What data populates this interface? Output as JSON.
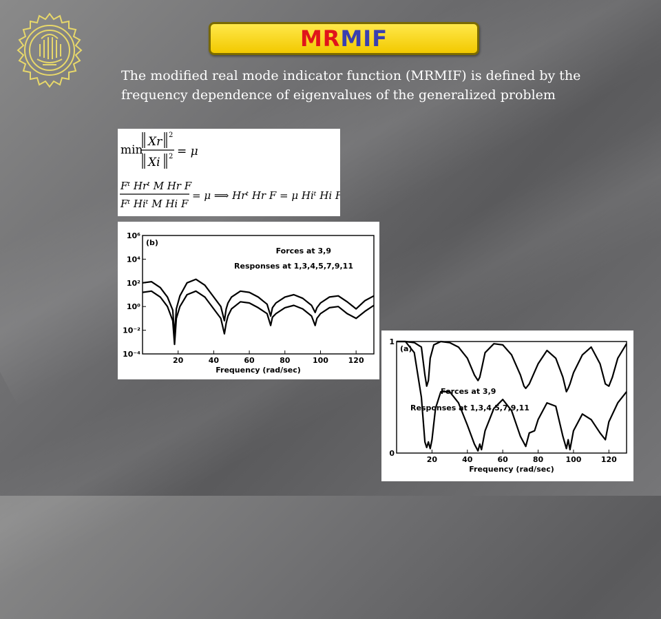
{
  "title": {
    "part1": "MR",
    "part2": "MIF"
  },
  "intro_text": "The modified real mode indicator function (MRMIF) is defined by the frequency dependence of eigenvalues of the generalized problem",
  "equations": {
    "eq1": {
      "min": "min",
      "num": "Xr",
      "den": "Xi",
      "exp": "2",
      "rhs": "= μ"
    },
    "eq2": {
      "num": "Fᵗ Hrᵗ M Hr F",
      "den": "Fᵗ Hiᵗ M Hi F",
      "rhs": "= μ ⟹ Hrᵗ Hr F = μ Hiᵗ Hi F"
    }
  },
  "chart_data": [
    {
      "type": "line",
      "panel_label": "(b)",
      "xlabel": "Frequency (rad/sec)",
      "xticks": [
        "20",
        "40",
        "60",
        "80",
        "100",
        "120"
      ],
      "yticks": [
        "10⁶",
        "10⁴",
        "10²",
        "10⁰",
        "10⁻²",
        "10⁻⁴"
      ],
      "yscale": "log",
      "xlim": [
        0,
        130
      ],
      "ylim_exp": [
        -4,
        6
      ],
      "annotations": [
        "Forces at 3,9",
        "Responses at 1,3,4,5,7,9,11"
      ],
      "series": [
        {
          "x": [
            0,
            5,
            10,
            14,
            17,
            18,
            19,
            21,
            25,
            30,
            35,
            40,
            44,
            46,
            47,
            48,
            50,
            55,
            60,
            65,
            70,
            72,
            73,
            75,
            80,
            85,
            90,
            95,
            97,
            98,
            100,
            105,
            110,
            115,
            120,
            125,
            130
          ],
          "y": [
            2.0,
            2.1,
            1.6,
            0.8,
            -0.3,
            -2.5,
            -0.2,
            0.9,
            2.0,
            2.3,
            1.8,
            0.8,
            0.0,
            -1.2,
            -0.2,
            0.3,
            0.8,
            1.3,
            1.2,
            0.8,
            0.2,
            -0.8,
            -0.1,
            0.3,
            0.8,
            1.0,
            0.7,
            0.1,
            -0.5,
            -0.1,
            0.3,
            0.8,
            0.9,
            0.4,
            -0.2,
            0.5,
            0.9
          ]
        },
        {
          "x": [
            0,
            5,
            10,
            14,
            17,
            18,
            19,
            21,
            25,
            30,
            35,
            40,
            44,
            46,
            47,
            48,
            50,
            55,
            60,
            65,
            70,
            72,
            73,
            75,
            80,
            85,
            90,
            95,
            97,
            98,
            100,
            105,
            110,
            115,
            120,
            125,
            130
          ],
          "y": [
            1.2,
            1.3,
            0.8,
            0.0,
            -1.2,
            -3.2,
            -1.0,
            0.0,
            1.0,
            1.3,
            0.8,
            -0.2,
            -1.0,
            -2.3,
            -1.4,
            -0.8,
            -0.2,
            0.4,
            0.3,
            -0.1,
            -0.6,
            -1.6,
            -0.9,
            -0.6,
            -0.1,
            0.1,
            -0.2,
            -0.8,
            -1.6,
            -1.0,
            -0.6,
            -0.1,
            0.0,
            -0.6,
            -1.0,
            -0.4,
            0.1
          ]
        }
      ]
    },
    {
      "type": "line",
      "panel_label": "(a)",
      "xlabel": "Frequency (rad/sec)",
      "xticks": [
        "20",
        "40",
        "60",
        "80",
        "100",
        "120"
      ],
      "yticks": [
        "1",
        "0"
      ],
      "xlim": [
        0,
        130
      ],
      "ylim": [
        0,
        1
      ],
      "annotations": [
        "Forces at 3,9",
        "Responses at 1,3,4,5,7,9,11"
      ],
      "series": [
        {
          "x": [
            0,
            5,
            10,
            14,
            16,
            17,
            18,
            19,
            21,
            25,
            30,
            35,
            40,
            44,
            46,
            47,
            48,
            50,
            55,
            60,
            65,
            70,
            72,
            73,
            75,
            80,
            85,
            90,
            94,
            96,
            97,
            98,
            100,
            105,
            110,
            115,
            118,
            120,
            122,
            125,
            130
          ],
          "y": [
            1.0,
            1.0,
            0.99,
            0.95,
            0.7,
            0.6,
            0.65,
            0.85,
            0.97,
            1.0,
            0.99,
            0.95,
            0.85,
            0.7,
            0.65,
            0.68,
            0.75,
            0.9,
            0.98,
            0.97,
            0.88,
            0.7,
            0.6,
            0.58,
            0.62,
            0.8,
            0.92,
            0.85,
            0.68,
            0.55,
            0.58,
            0.62,
            0.72,
            0.88,
            0.95,
            0.8,
            0.62,
            0.6,
            0.68,
            0.85,
            0.98
          ]
        },
        {
          "x": [
            0,
            5,
            10,
            14,
            16,
            17,
            18,
            19,
            20,
            22,
            25,
            30,
            35,
            40,
            44,
            46,
            47,
            48,
            50,
            55,
            60,
            65,
            70,
            73,
            75,
            78,
            80,
            85,
            90,
            94,
            96,
            97,
            98,
            100,
            105,
            110,
            115,
            118,
            120,
            125,
            130
          ],
          "y": [
            1.0,
            1.0,
            0.9,
            0.5,
            0.1,
            0.05,
            0.1,
            0.04,
            0.12,
            0.4,
            0.55,
            0.55,
            0.45,
            0.25,
            0.08,
            0.02,
            0.08,
            0.03,
            0.2,
            0.4,
            0.48,
            0.38,
            0.15,
            0.06,
            0.18,
            0.2,
            0.3,
            0.45,
            0.42,
            0.15,
            0.04,
            0.12,
            0.03,
            0.2,
            0.35,
            0.3,
            0.18,
            0.12,
            0.28,
            0.45,
            0.55
          ]
        }
      ]
    }
  ]
}
